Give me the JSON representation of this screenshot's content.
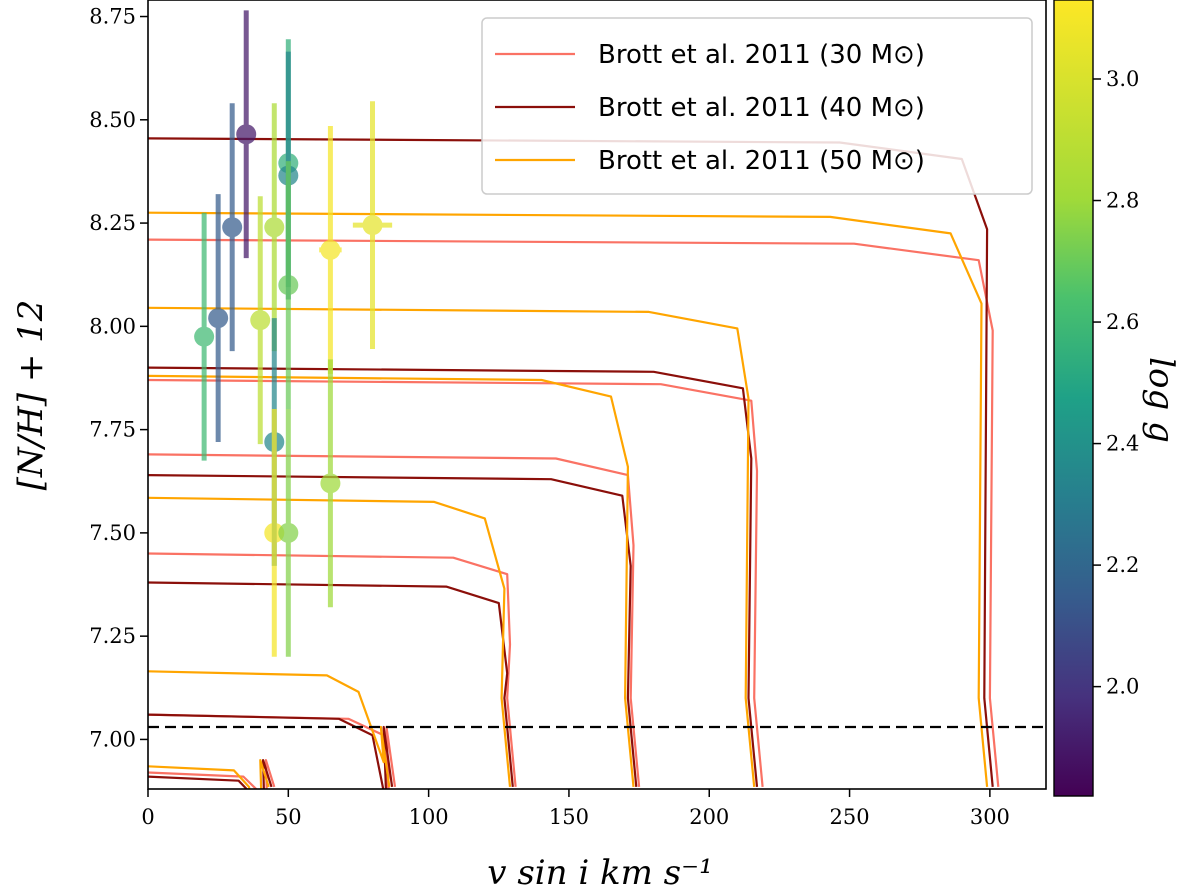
{
  "chart_data": {
    "type": "scatter",
    "title": "",
    "xlabel": "v sin i km s⁻¹",
    "ylabel": "[N/H] + 12",
    "colorbar_label": "log g",
    "xlim": [
      0,
      320
    ],
    "ylim": [
      6.88,
      8.79
    ],
    "clim": [
      1.82,
      3.13
    ],
    "x_ticks": [
      0,
      50,
      100,
      150,
      200,
      250,
      300
    ],
    "y_ticks": [
      7.0,
      7.25,
      7.5,
      7.75,
      8.0,
      8.25,
      8.5,
      8.75
    ],
    "colorbar_ticks": [
      2.0,
      2.2,
      2.4,
      2.6,
      2.8,
      3.0
    ],
    "grid": false,
    "legend_position": "top-right",
    "colors": {
      "m30": "#fa7264",
      "m40": "#8b0f0a",
      "m50": "#ffa500"
    },
    "hline": {
      "y": 7.03,
      "style": "dashed",
      "color": "#000000"
    },
    "points": [
      {
        "x": 20,
        "y": 7.975,
        "yerr": 0.3,
        "xerr": 3,
        "logg": 2.6
      },
      {
        "x": 25,
        "y": 8.02,
        "yerr": 0.3,
        "xerr": 3,
        "logg": 2.15
      },
      {
        "x": 30,
        "y": 8.24,
        "yerr": 0.3,
        "xerr": 3,
        "logg": 2.15
      },
      {
        "x": 35,
        "y": 8.465,
        "yerr": 0.3,
        "xerr": 3,
        "logg": 1.9
      },
      {
        "x": 40,
        "y": 8.015,
        "yerr": 0.3,
        "xerr": 3,
        "logg": 2.9
      },
      {
        "x": 45,
        "y": 8.24,
        "yerr": 0.3,
        "xerr": 3,
        "logg": 2.85
      },
      {
        "x": 45,
        "y": 7.72,
        "yerr": 0.3,
        "xerr": 3,
        "logg": 2.35
      },
      {
        "x": 45,
        "y": 7.5,
        "yerr": 0.3,
        "xerr": 3,
        "logg": 3.1
      },
      {
        "x": 50,
        "y": 8.395,
        "yerr": 0.3,
        "xerr": 3,
        "logg": 2.55
      },
      {
        "x": 50,
        "y": 8.365,
        "yerr": 0.3,
        "xerr": 3,
        "logg": 2.35
      },
      {
        "x": 50,
        "y": 8.1,
        "yerr": 0.3,
        "xerr": 3,
        "logg": 2.7
      },
      {
        "x": 50,
        "y": 7.5,
        "yerr": 0.3,
        "xerr": 3,
        "logg": 2.75
      },
      {
        "x": 65,
        "y": 8.185,
        "yerr": 0.3,
        "xerr": 4,
        "logg": 3.1
      },
      {
        "x": 65,
        "y": 7.62,
        "yerr": 0.3,
        "xerr": 3,
        "logg": 2.8
      },
      {
        "x": 80,
        "y": 8.245,
        "yerr": 0.3,
        "xerr": 7,
        "logg": 3.05
      }
    ],
    "series": [
      {
        "name": "Brott et al. 2011 (30 M⊙)",
        "mass": "m30",
        "tracks": [
          {
            "level": 8.21,
            "x0": 303,
            "bend": 296,
            "flat_end": 7.05
          },
          {
            "level": 7.87,
            "x0": 219,
            "bend": 215,
            "flat_end": 7.05
          },
          {
            "level": 7.69,
            "x0": 175,
            "bend": 171,
            "flat_end": 7.05
          },
          {
            "level": 7.45,
            "x0": 131,
            "bend": 128,
            "flat_end": 7.05
          },
          {
            "level": 7.06,
            "x0": 88,
            "bend": 84,
            "flat_end": 6.98
          },
          {
            "level": 6.92,
            "x0": 45,
            "bend": 40,
            "flat_end": 6.9
          }
        ]
      },
      {
        "name": "Brott et al. 2011 (40 M⊙)",
        "mass": "m40",
        "tracks": [
          {
            "level": 8.455,
            "x0": 301,
            "bend": 290,
            "flat_end": 7.05
          },
          {
            "level": 7.9,
            "x0": 217,
            "bend": 212,
            "flat_end": 7.05
          },
          {
            "level": 7.64,
            "x0": 174,
            "bend": 169,
            "flat_end": 7.05
          },
          {
            "level": 7.38,
            "x0": 130,
            "bend": 125,
            "flat_end": 7.05
          },
          {
            "level": 7.06,
            "x0": 87,
            "bend": 80,
            "flat_end": 6.98
          },
          {
            "level": 6.91,
            "x0": 44,
            "bend": 38,
            "flat_end": 6.9
          }
        ]
      },
      {
        "name": "Brott et al. 2011 (50 M⊙)",
        "mass": "m50",
        "tracks": [
          {
            "level": 8.275,
            "x0": 299,
            "bend": 286,
            "flat_end": 7.05
          },
          {
            "level": 8.045,
            "x0": 216,
            "bend": 210,
            "flat_end": 7.05
          },
          {
            "level": 7.88,
            "x0": 173,
            "bend": 165,
            "flat_end": 7.05
          },
          {
            "level": 7.585,
            "x0": 129,
            "bend": 120,
            "flat_end": 7.05
          },
          {
            "level": 7.165,
            "x0": 86,
            "bend": 75,
            "flat_end": 6.98
          },
          {
            "level": 6.935,
            "x0": 43,
            "bend": 36,
            "flat_end": 6.9
          }
        ]
      }
    ]
  }
}
